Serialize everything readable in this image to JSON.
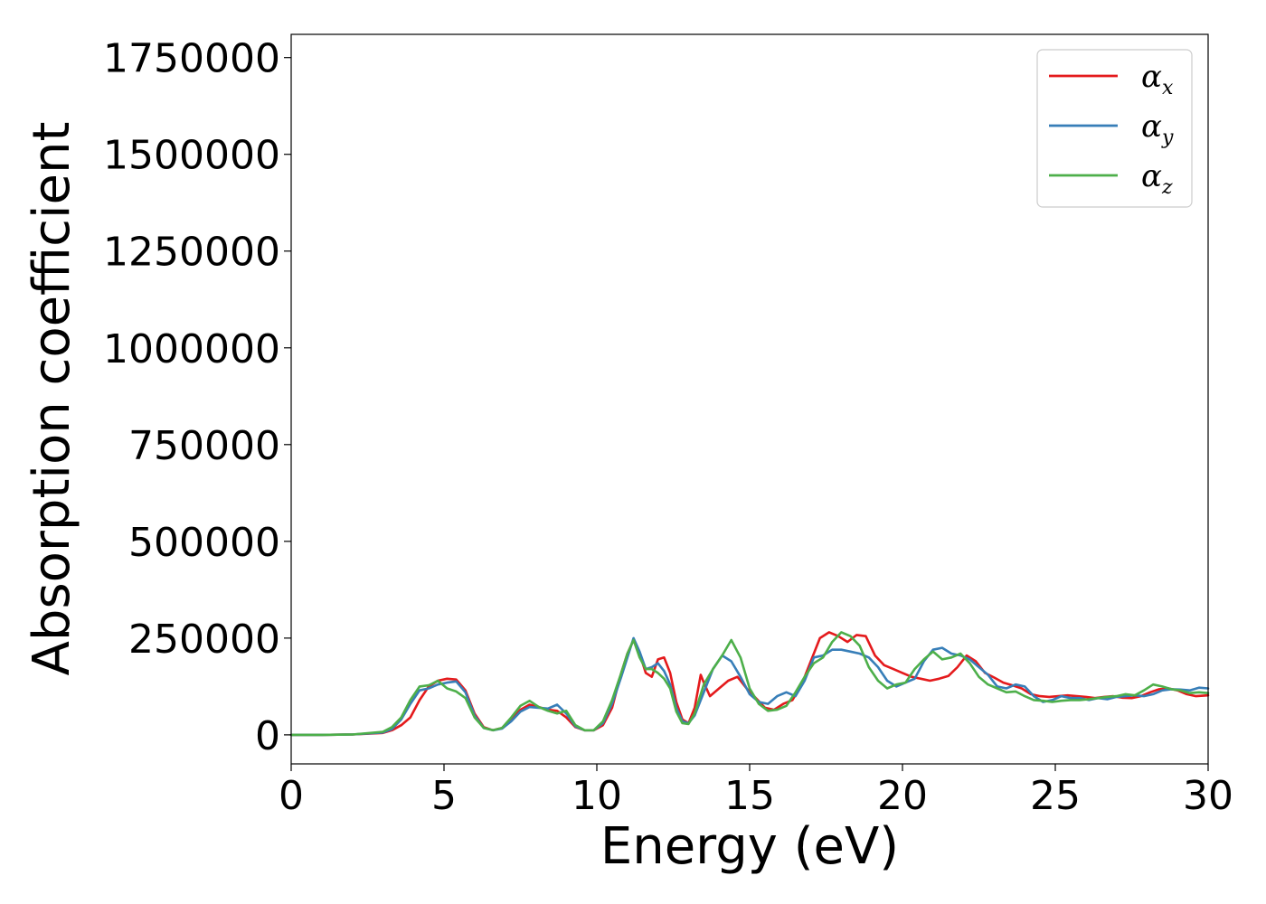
{
  "chart_data": {
    "type": "line",
    "title": "",
    "xlabel": "Energy (eV)",
    "ylabel": "Absorption coefficient",
    "xlim": [
      0,
      30
    ],
    "ylim": [
      -75000,
      1810000
    ],
    "xticks": [
      0,
      5,
      10,
      15,
      20,
      25,
      30
    ],
    "xtick_labels": [
      "0",
      "5",
      "10",
      "15",
      "20",
      "25",
      "30"
    ],
    "yticks": [
      0,
      250000,
      500000,
      750000,
      1000000,
      1250000,
      1500000,
      1750000
    ],
    "ytick_labels": [
      "0",
      "250000",
      "500000",
      "750000",
      "1000000",
      "1250000",
      "1500000",
      "1750000"
    ],
    "grid": false,
    "legend_position": "top-right",
    "series": [
      {
        "name": "αx",
        "legend_main": "α",
        "legend_sub": "x",
        "color": "#e41a1c",
        "x": [
          0,
          1,
          2,
          3,
          3.3,
          3.6,
          3.9,
          4.2,
          4.5,
          4.8,
          5.1,
          5.4,
          5.7,
          6.0,
          6.3,
          6.6,
          6.9,
          7.2,
          7.5,
          7.8,
          8.1,
          8.4,
          8.7,
          9.0,
          9.3,
          9.6,
          9.9,
          10.2,
          10.5,
          10.8,
          11.0,
          11.2,
          11.4,
          11.6,
          11.8,
          12.0,
          12.2,
          12.4,
          12.6,
          12.8,
          13.0,
          13.2,
          13.4,
          13.5,
          13.7,
          14.0,
          14.3,
          14.6,
          14.9,
          15.2,
          15.5,
          15.8,
          16.1,
          16.4,
          16.7,
          17.0,
          17.3,
          17.6,
          17.9,
          18.2,
          18.5,
          18.8,
          19.1,
          19.4,
          19.7,
          20.0,
          20.3,
          20.6,
          20.9,
          21.2,
          21.5,
          21.8,
          22.1,
          22.4,
          22.7,
          23.0,
          23.3,
          23.6,
          23.9,
          24.2,
          24.5,
          24.8,
          25.1,
          25.4,
          25.7,
          26.0,
          26.3,
          26.6,
          26.9,
          27.2,
          27.5,
          27.8,
          28.1,
          28.4,
          28.7,
          29.0,
          29.3,
          29.6,
          30.0
        ],
        "y": [
          0,
          0,
          1000,
          5000,
          12000,
          25000,
          45000,
          90000,
          125000,
          140000,
          145000,
          143000,
          115000,
          55000,
          20000,
          12000,
          18000,
          40000,
          65000,
          78000,
          72000,
          65000,
          62000,
          45000,
          20000,
          12000,
          12000,
          25000,
          70000,
          160000,
          210000,
          245000,
          210000,
          160000,
          150000,
          195000,
          200000,
          160000,
          85000,
          40000,
          30000,
          70000,
          155000,
          135000,
          100000,
          120000,
          140000,
          150000,
          120000,
          95000,
          70000,
          65000,
          80000,
          90000,
          130000,
          190000,
          250000,
          265000,
          255000,
          240000,
          258000,
          255000,
          205000,
          180000,
          170000,
          160000,
          150000,
          145000,
          140000,
          145000,
          152000,
          175000,
          205000,
          190000,
          160000,
          148000,
          135000,
          128000,
          120000,
          105000,
          100000,
          98000,
          100000,
          102000,
          100000,
          98000,
          95000,
          98000,
          100000,
          96000,
          95000,
          100000,
          110000,
          118000,
          120000,
          115000,
          105000,
          100000,
          102000
        ]
      },
      {
        "name": "αy",
        "legend_main": "α",
        "legend_sub": "y",
        "color": "#377eb8",
        "x": [
          0,
          1,
          2,
          3,
          3.3,
          3.6,
          3.9,
          4.2,
          4.5,
          4.8,
          5.1,
          5.4,
          5.7,
          6.0,
          6.3,
          6.6,
          6.9,
          7.2,
          7.5,
          7.8,
          8.1,
          8.4,
          8.7,
          9.0,
          9.3,
          9.6,
          9.9,
          10.2,
          10.5,
          10.8,
          11.0,
          11.2,
          11.4,
          11.6,
          11.8,
          12.0,
          12.2,
          12.4,
          12.6,
          12.8,
          13.0,
          13.2,
          13.5,
          13.8,
          14.1,
          14.4,
          14.7,
          15.0,
          15.3,
          15.6,
          15.9,
          16.2,
          16.5,
          16.8,
          17.1,
          17.4,
          17.7,
          18.0,
          18.3,
          18.6,
          18.9,
          19.2,
          19.5,
          19.8,
          20.1,
          20.4,
          20.7,
          21.0,
          21.3,
          21.6,
          21.9,
          22.2,
          22.5,
          22.8,
          23.1,
          23.4,
          23.7,
          24.0,
          24.3,
          24.6,
          24.9,
          25.2,
          25.5,
          25.8,
          26.1,
          26.4,
          26.7,
          27.0,
          27.3,
          27.6,
          27.9,
          28.2,
          28.5,
          28.8,
          29.1,
          29.4,
          29.7,
          30.0
        ],
        "y": [
          0,
          0,
          1000,
          6000,
          15000,
          40000,
          80000,
          115000,
          120000,
          130000,
          135000,
          138000,
          110000,
          50000,
          18000,
          12000,
          16000,
          35000,
          60000,
          72000,
          70000,
          68000,
          78000,
          55000,
          22000,
          12000,
          12000,
          30000,
          80000,
          150000,
          200000,
          250000,
          215000,
          170000,
          175000,
          185000,
          165000,
          130000,
          70000,
          35000,
          30000,
          50000,
          110000,
          170000,
          205000,
          190000,
          150000,
          105000,
          85000,
          80000,
          100000,
          110000,
          100000,
          140000,
          200000,
          205000,
          220000,
          220000,
          215000,
          210000,
          200000,
          175000,
          140000,
          125000,
          135000,
          145000,
          190000,
          220000,
          225000,
          210000,
          205000,
          195000,
          175000,
          155000,
          125000,
          120000,
          130000,
          125000,
          100000,
          85000,
          90000,
          100000,
          95000,
          95000,
          90000,
          95000,
          92000,
          98000,
          100000,
          102000,
          100000,
          105000,
          115000,
          118000,
          117000,
          115000,
          122000,
          120000
        ]
      },
      {
        "name": "αz",
        "legend_main": "α",
        "legend_sub": "z",
        "color": "#4daf4a",
        "x": [
          0,
          1,
          2,
          3,
          3.3,
          3.6,
          3.9,
          4.2,
          4.5,
          4.8,
          5.1,
          5.4,
          5.7,
          6.0,
          6.3,
          6.6,
          6.9,
          7.2,
          7.5,
          7.8,
          8.1,
          8.4,
          8.7,
          9.0,
          9.3,
          9.6,
          9.9,
          10.2,
          10.5,
          10.8,
          11.0,
          11.2,
          11.4,
          11.6,
          11.8,
          12.0,
          12.2,
          12.4,
          12.6,
          12.8,
          13.0,
          13.2,
          13.5,
          13.8,
          14.1,
          14.4,
          14.7,
          15.0,
          15.3,
          15.6,
          15.9,
          16.2,
          16.5,
          16.8,
          17.1,
          17.4,
          17.7,
          18.0,
          18.3,
          18.6,
          18.9,
          19.2,
          19.5,
          19.8,
          20.1,
          20.4,
          20.7,
          21.0,
          21.3,
          21.6,
          21.9,
          22.2,
          22.5,
          22.8,
          23.1,
          23.4,
          23.7,
          24.0,
          24.3,
          24.6,
          24.9,
          25.2,
          25.5,
          25.8,
          26.1,
          26.4,
          26.7,
          27.0,
          27.3,
          27.6,
          27.9,
          28.2,
          28.5,
          28.8,
          29.1,
          29.4,
          29.7,
          30.0
        ],
        "y": [
          0,
          0,
          1000,
          8000,
          20000,
          45000,
          90000,
          125000,
          128000,
          140000,
          120000,
          112000,
          95000,
          45000,
          18000,
          12000,
          18000,
          45000,
          75000,
          88000,
          72000,
          62000,
          55000,
          62000,
          25000,
          12000,
          12000,
          35000,
          90000,
          160000,
          210000,
          245000,
          200000,
          170000,
          170000,
          160000,
          145000,
          120000,
          60000,
          30000,
          28000,
          55000,
          130000,
          170000,
          205000,
          245000,
          200000,
          120000,
          80000,
          62000,
          65000,
          75000,
          110000,
          150000,
          185000,
          200000,
          240000,
          265000,
          255000,
          230000,
          175000,
          140000,
          120000,
          130000,
          135000,
          170000,
          195000,
          215000,
          195000,
          200000,
          210000,
          185000,
          150000,
          130000,
          120000,
          110000,
          112000,
          100000,
          90000,
          88000,
          85000,
          88000,
          90000,
          90000,
          92000,
          95000,
          98000,
          100000,
          105000,
          102000,
          115000,
          130000,
          125000,
          118000,
          115000,
          108000,
          110000,
          108000
        ]
      }
    ]
  }
}
